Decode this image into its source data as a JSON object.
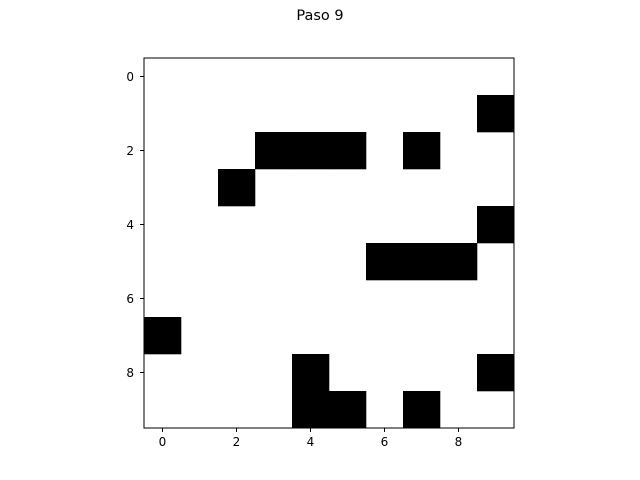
{
  "chart_data": {
    "type": "heatmap",
    "title": "Paso 9",
    "xlabel": "",
    "ylabel": "",
    "rows": 10,
    "cols": 10,
    "colormap": "binary",
    "colors": {
      "filled": "#000000",
      "empty": "#ffffff"
    },
    "xticks": [
      0,
      2,
      4,
      6,
      8
    ],
    "yticks": [
      0,
      2,
      4,
      6,
      8
    ],
    "xlim": [
      -0.5,
      9.5
    ],
    "ylim": [
      9.5,
      -0.5
    ],
    "filled_cells": [
      [
        1,
        9
      ],
      [
        2,
        3
      ],
      [
        2,
        4
      ],
      [
        2,
        5
      ],
      [
        2,
        7
      ],
      [
        3,
        2
      ],
      [
        4,
        9
      ],
      [
        5,
        6
      ],
      [
        5,
        7
      ],
      [
        5,
        8
      ],
      [
        7,
        0
      ],
      [
        8,
        4
      ],
      [
        8,
        9
      ],
      [
        9,
        4
      ],
      [
        9,
        5
      ],
      [
        9,
        7
      ]
    ]
  }
}
